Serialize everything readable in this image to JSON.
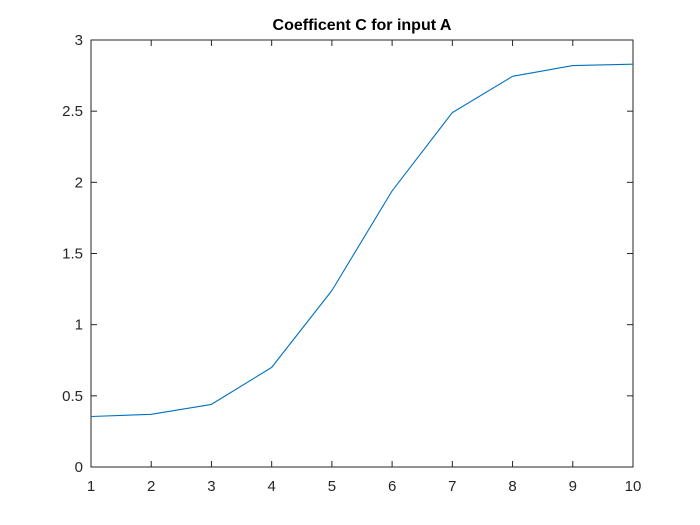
{
  "chart_data": {
    "type": "line",
    "title": "Coefficent C for input A",
    "xlabel": "",
    "ylabel": "",
    "xlim": [
      1,
      10
    ],
    "ylim": [
      0,
      3
    ],
    "xticks": [
      1,
      2,
      3,
      4,
      5,
      6,
      7,
      8,
      9,
      10
    ],
    "yticks": [
      0,
      0.5,
      1,
      1.5,
      2,
      2.5,
      3
    ],
    "xtick_labels": [
      "1",
      "2",
      "3",
      "4",
      "5",
      "6",
      "7",
      "8",
      "9",
      "10"
    ],
    "ytick_labels": [
      "0",
      "0.5",
      "1",
      "1.5",
      "2",
      "2.5",
      "3"
    ],
    "grid": false,
    "series": [
      {
        "x": [
          1,
          2,
          3,
          4,
          5,
          6,
          7,
          8,
          9,
          10
        ],
        "values": [
          0.355,
          0.37,
          0.44,
          0.7,
          1.24,
          1.94,
          2.49,
          2.745,
          2.82,
          2.83
        ],
        "color": "#0072BD"
      }
    ]
  }
}
